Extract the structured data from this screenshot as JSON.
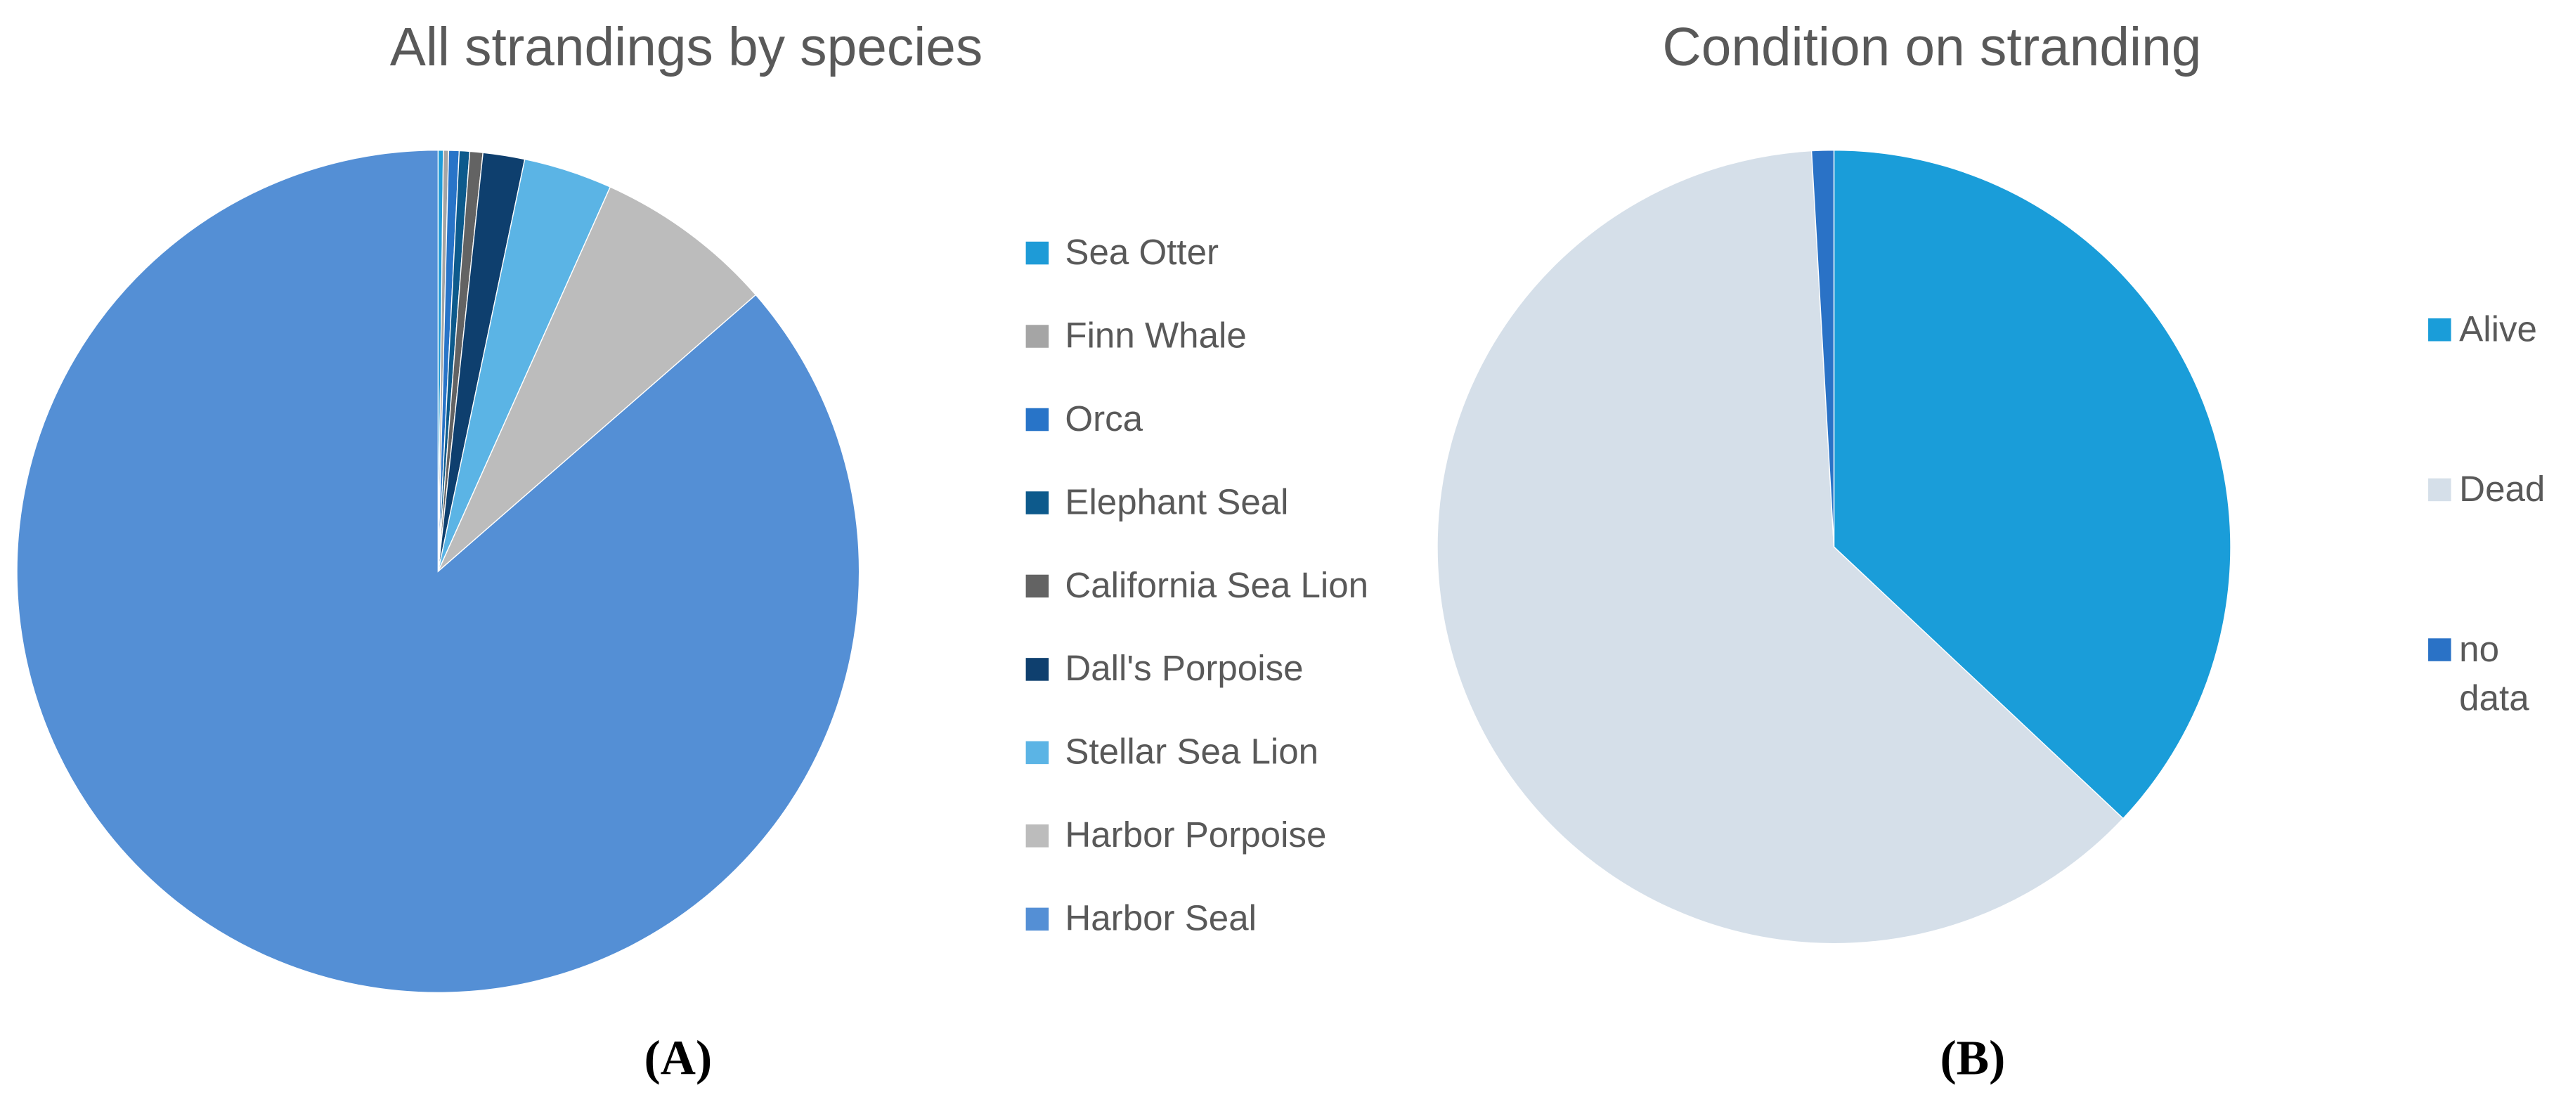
{
  "chart_data": [
    {
      "type": "pie",
      "title": "All strandings by species",
      "panel_label": "(A)",
      "categories": [
        "Sea Otter",
        "Finn Whale",
        "Orca",
        "Elephant Seal",
        "California Sea Lion",
        "Dall's Porpoise",
        "Stellar Sea Lion",
        "Harbor Porpoise",
        "Harbor Seal"
      ],
      "values": [
        0.2,
        0.2,
        0.4,
        0.4,
        0.5,
        1.6,
        3.4,
        6.9,
        86.4
      ],
      "colors": [
        "#1e9bd7",
        "#a5a5a5",
        "#2874c8",
        "#0d5a8c",
        "#636363",
        "#0e3f6e",
        "#5bb4e5",
        "#bcbcbc",
        "#548fd5"
      ]
    },
    {
      "type": "pie",
      "title": "Condition on stranding",
      "panel_label": "(B)",
      "categories": [
        "Alive",
        "Dead",
        "no data"
      ],
      "values": [
        37,
        62.1,
        0.9
      ],
      "colors": [
        "#1a9dd9",
        "#d5dfe9",
        "#2a72c6"
      ]
    }
  ]
}
